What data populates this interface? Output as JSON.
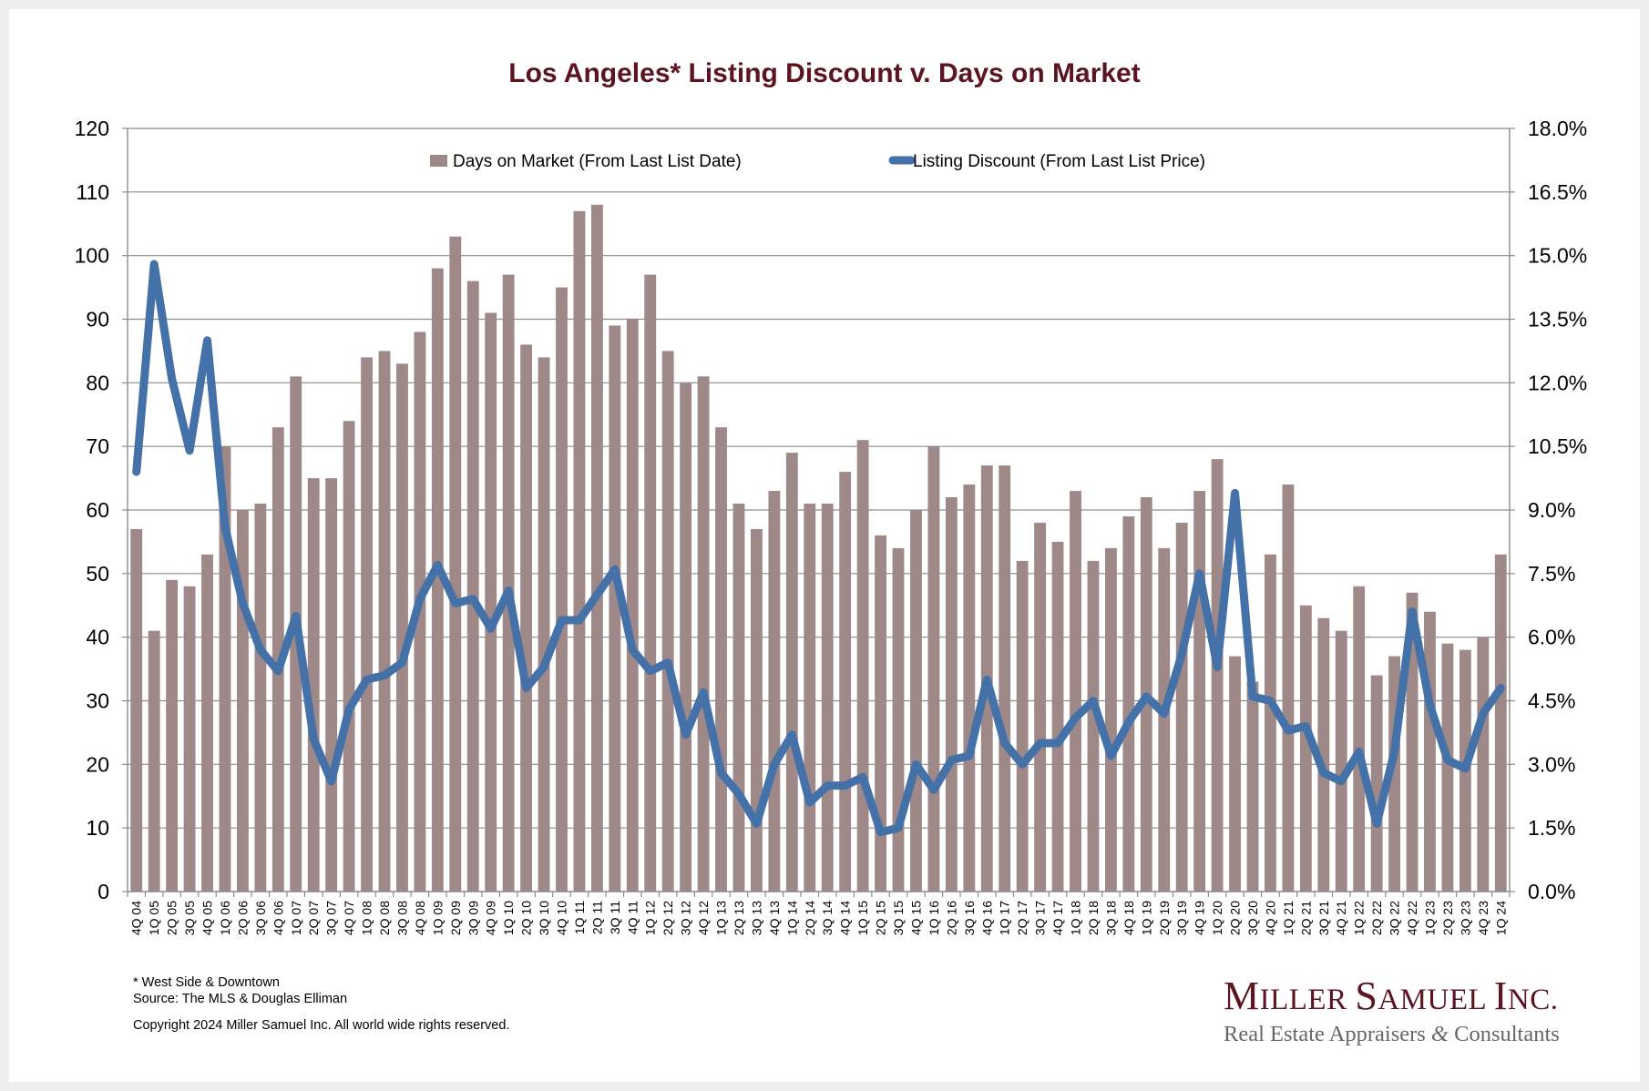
{
  "chart_data": {
    "type": "bar+line",
    "title": "Los Angeles* Listing Discount v. Days on Market",
    "categories": [
      "4Q 04",
      "1Q 05",
      "2Q 05",
      "3Q 05",
      "4Q 05",
      "1Q 06",
      "2Q 06",
      "3Q 06",
      "4Q 06",
      "1Q 07",
      "2Q 07",
      "3Q 07",
      "4Q 07",
      "1Q 08",
      "2Q 08",
      "3Q 08",
      "4Q 08",
      "1Q 09",
      "2Q 09",
      "3Q 09",
      "4Q 09",
      "1Q 10",
      "2Q 10",
      "3Q 10",
      "4Q 10",
      "1Q 11",
      "2Q 11",
      "3Q 11",
      "4Q 11",
      "1Q 12",
      "2Q 12",
      "3Q 12",
      "4Q 12",
      "1Q 13",
      "2Q 13",
      "3Q 13",
      "4Q 13",
      "1Q 14",
      "2Q 14",
      "3Q 14",
      "4Q 14",
      "1Q 15",
      "2Q 15",
      "3Q 15",
      "4Q 15",
      "1Q 16",
      "2Q 16",
      "3Q 16",
      "4Q 16",
      "1Q 17",
      "2Q 17",
      "3Q 17",
      "4Q 17",
      "1Q 18",
      "2Q 18",
      "3Q 18",
      "4Q 18",
      "1Q 19",
      "2Q 19",
      "3Q 19",
      "4Q 19",
      "1Q 20",
      "2Q 20",
      "3Q 20",
      "4Q 20",
      "1Q 21",
      "2Q 21",
      "3Q 21",
      "4Q 21",
      "1Q 22",
      "2Q 22",
      "3Q 22",
      "4Q 22",
      "1Q 23",
      "2Q 23",
      "3Q 23",
      "4Q 23",
      "1Q 24"
    ],
    "series": [
      {
        "name": "Days on Market (From Last List Date)",
        "type": "bar",
        "axis": "left",
        "color": "#9e8888",
        "values": [
          57,
          41,
          49,
          48,
          53,
          70,
          60,
          61,
          73,
          81,
          65,
          65,
          74,
          84,
          85,
          83,
          88,
          98,
          103,
          96,
          91,
          97,
          86,
          84,
          95,
          107,
          108,
          89,
          90,
          97,
          85,
          80,
          81,
          73,
          61,
          57,
          63,
          69,
          61,
          61,
          66,
          71,
          56,
          54,
          60,
          70,
          62,
          64,
          67,
          67,
          52,
          58,
          55,
          63,
          52,
          54,
          59,
          62,
          54,
          58,
          63,
          68,
          37,
          33,
          53,
          64,
          45,
          43,
          41,
          48,
          34,
          37,
          47,
          44,
          39,
          38,
          40,
          53
        ]
      },
      {
        "name": "Listing Discount (From Last List Price)",
        "type": "line",
        "axis": "right",
        "color": "#4472a8",
        "values": [
          9.9,
          14.8,
          12.1,
          10.4,
          13.0,
          8.6,
          6.8,
          5.7,
          5.2,
          6.5,
          3.6,
          2.6,
          4.3,
          5.0,
          5.1,
          5.4,
          6.9,
          7.7,
          6.8,
          6.9,
          6.2,
          7.1,
          4.8,
          5.3,
          6.4,
          6.4,
          7.0,
          7.6,
          5.7,
          5.2,
          5.4,
          3.7,
          4.7,
          2.8,
          2.3,
          1.6,
          3.0,
          3.7,
          2.1,
          2.5,
          2.5,
          2.7,
          1.4,
          1.5,
          3.0,
          2.4,
          3.1,
          3.2,
          5.0,
          3.5,
          3.0,
          3.5,
          3.5,
          4.1,
          4.5,
          3.2,
          4.0,
          4.6,
          4.2,
          5.6,
          7.5,
          5.3,
          9.4,
          4.6,
          4.5,
          3.8,
          3.9,
          2.8,
          2.6,
          3.3,
          1.6,
          3.3,
          6.6,
          4.4,
          3.1,
          2.9,
          4.2,
          4.8
        ]
      }
    ],
    "left_axis": {
      "ylim": [
        0,
        120
      ],
      "ticks": [
        "0",
        "10",
        "20",
        "30",
        "40",
        "50",
        "60",
        "70",
        "80",
        "90",
        "100",
        "110",
        "120"
      ]
    },
    "right_axis": {
      "ylim": [
        0,
        18
      ],
      "unit": "%",
      "ticks": [
        "0.0%",
        "1.5%",
        "3.0%",
        "4.5%",
        "6.0%",
        "7.5%",
        "9.0%",
        "10.5%",
        "12.0%",
        "13.5%",
        "15.0%",
        "16.5%",
        "18.0%"
      ]
    },
    "grid": true,
    "legend": "top-center",
    "xlabel": "",
    "ylabel": ""
  },
  "notes": {
    "footnote": "* West Side & Downtown",
    "source": "Source: The MLS & Douglas Elliman",
    "copyright": "Copyright 2024 Miller Samuel Inc.  All world wide rights reserved."
  },
  "logo": {
    "company_big1": "M",
    "company_small1": "ILLER ",
    "company_big2": "S",
    "company_small2": "AMUEL ",
    "company_big3": "I",
    "company_small3": "NC.",
    "tagline_a": "Real Estate Appraisers ",
    "tagline_amp": "&",
    "tagline_b": " Consultants"
  }
}
